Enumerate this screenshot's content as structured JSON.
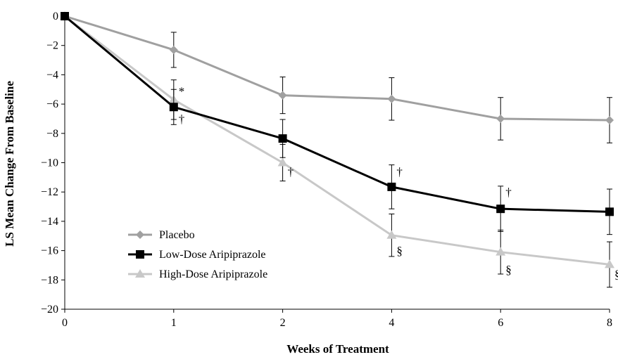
{
  "chart_data": {
    "type": "line",
    "title": "",
    "xlabel": "Weeks of Treatment",
    "ylabel": "LS Mean Change From Baseline",
    "categories": [
      "0",
      "1",
      "2",
      "4",
      "6",
      "8"
    ],
    "ylim": [
      -20,
      0
    ],
    "yticks": [
      0,
      -2,
      -4,
      -6,
      -8,
      -10,
      -12,
      -14,
      -16,
      -18,
      -20
    ],
    "ytick_labels": [
      "0",
      "−2",
      "−4",
      "−6",
      "−8",
      "−10",
      "−12",
      "−14",
      "−16",
      "−18",
      "−20"
    ],
    "grid": false,
    "legend_position": "bottom-left",
    "series": [
      {
        "name": "Placebo",
        "color": "#a0a0a0",
        "marker": "diamond",
        "values": [
          0,
          -2.3,
          -5.4,
          -5.65,
          -7.0,
          -7.1
        ],
        "error": [
          0,
          1.2,
          1.25,
          1.45,
          1.45,
          1.55
        ]
      },
      {
        "name": "Low-Dose Aripiprazole",
        "color": "#000000",
        "marker": "square",
        "values": [
          0,
          -6.2,
          -8.35,
          -11.65,
          -13.15,
          -13.35
        ],
        "error": [
          0,
          1.2,
          1.3,
          1.5,
          1.55,
          1.55
        ]
      },
      {
        "name": "High-Dose Aripiprazole",
        "color": "#c8c8c8",
        "marker": "triangle",
        "values": [
          0,
          -5.7,
          -10.0,
          -14.95,
          -16.1,
          -16.95
        ],
        "error": [
          0,
          1.35,
          1.25,
          1.45,
          1.5,
          1.55
        ]
      }
    ],
    "annotations": [
      {
        "text": "*",
        "x_index": 1,
        "y": -5.1
      },
      {
        "text": "†",
        "x_index": 1,
        "y": -7.0
      },
      {
        "text": "†",
        "x_index": 2,
        "y": -10.6
      },
      {
        "text": "†",
        "x_index": 3,
        "y": -10.6
      },
      {
        "text": "§",
        "x_index": 3,
        "y": -16.0
      },
      {
        "text": "†",
        "x_index": 4,
        "y": -12.0
      },
      {
        "text": "§",
        "x_index": 4,
        "y": -17.3
      },
      {
        "text": "§",
        "x_index": 5,
        "y": -17.6
      }
    ]
  }
}
